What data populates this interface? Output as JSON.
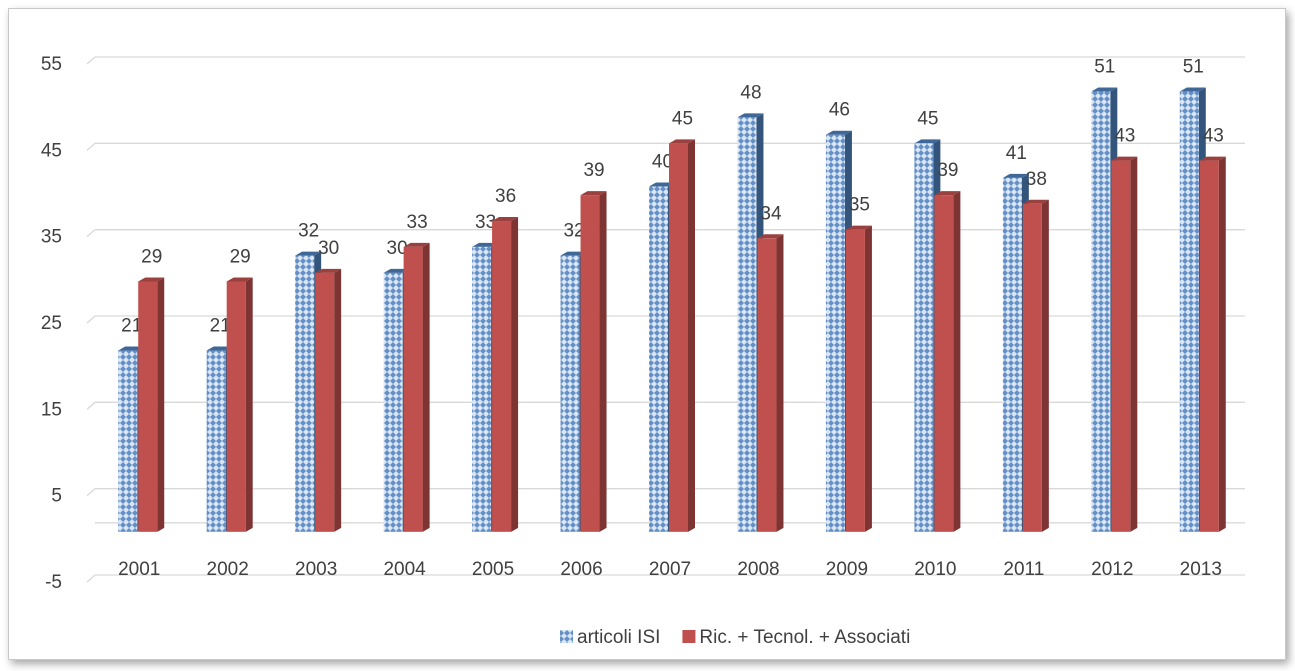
{
  "chart_data": {
    "type": "bar3d",
    "categories": [
      "2001",
      "2002",
      "2003",
      "2004",
      "2005",
      "2006",
      "2007",
      "2008",
      "2009",
      "2010",
      "2011",
      "2012",
      "2013"
    ],
    "series": [
      {
        "name": "articoli ISI",
        "color": "#4f81bd",
        "values": [
          21,
          21,
          32,
          30,
          33,
          32,
          40,
          48,
          46,
          45,
          41,
          51,
          51
        ]
      },
      {
        "name": "Ric. + Tecnol. + Associati",
        "color": "#c0504d",
        "values": [
          29,
          29,
          30,
          33,
          36,
          39,
          45,
          34,
          35,
          39,
          38,
          43,
          43
        ]
      }
    ],
    "ylim": [
      -5,
      55
    ],
    "yticks": [
      -5,
      5,
      15,
      25,
      35,
      45,
      55
    ],
    "grid": true,
    "legend": "bottom"
  }
}
